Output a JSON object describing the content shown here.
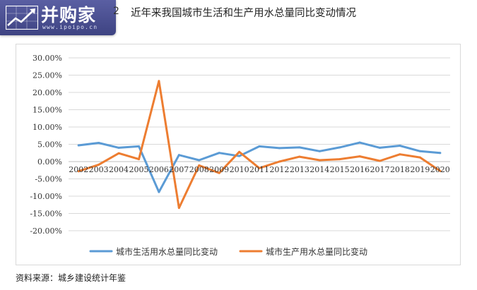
{
  "watermark": {
    "brand": "并购家",
    "url": "www.ipoipo.cn",
    "icon": "rising-chart-icon",
    "colors": {
      "bg": "#4a4f92",
      "text": "#ffffff"
    }
  },
  "figure": {
    "number": "2",
    "source": "资料来源：城乡建设统计年鉴"
  },
  "chart_data": {
    "type": "line",
    "title": "近年来我国城市生活和生产用水总量同比变动情况",
    "xlabel": "",
    "ylabel": "",
    "categories": [
      "2002",
      "2003",
      "2004",
      "2005",
      "2006",
      "2007",
      "2008",
      "2009",
      "2010",
      "2011",
      "2012",
      "2013",
      "2014",
      "2015",
      "2016",
      "2017",
      "2018",
      "2019",
      "2020"
    ],
    "ylim": [
      -0.2,
      0.3
    ],
    "yticks": [
      "30.00%",
      "25.00%",
      "20.00%",
      "15.00%",
      "10.00%",
      "5.00%",
      "0.00%",
      "-5.00%",
      "-10.00%",
      "-15.00%",
      "-20.00%"
    ],
    "ytick_values": [
      0.3,
      0.25,
      0.2,
      0.15,
      0.1,
      0.05,
      0.0,
      -0.05,
      -0.1,
      -0.15,
      -0.2
    ],
    "grid": true,
    "legend_position": "bottom",
    "series": [
      {
        "name": "城市生活用水总量同比变动",
        "color": "#5b9bd5",
        "values": [
          0.047,
          0.054,
          0.04,
          0.044,
          -0.088,
          0.019,
          0.004,
          0.025,
          0.016,
          0.044,
          0.039,
          0.041,
          0.03,
          0.041,
          0.055,
          0.04,
          0.046,
          0.03,
          0.025
        ]
      },
      {
        "name": "城市生产用水总量同比变动",
        "color": "#ed7d31",
        "values": [
          -0.028,
          -0.009,
          0.024,
          0.007,
          0.233,
          -0.134,
          -0.011,
          -0.033,
          0.028,
          -0.019,
          0.0,
          0.014,
          0.004,
          0.007,
          0.015,
          0.002,
          0.021,
          0.012,
          -0.027
        ]
      }
    ]
  }
}
